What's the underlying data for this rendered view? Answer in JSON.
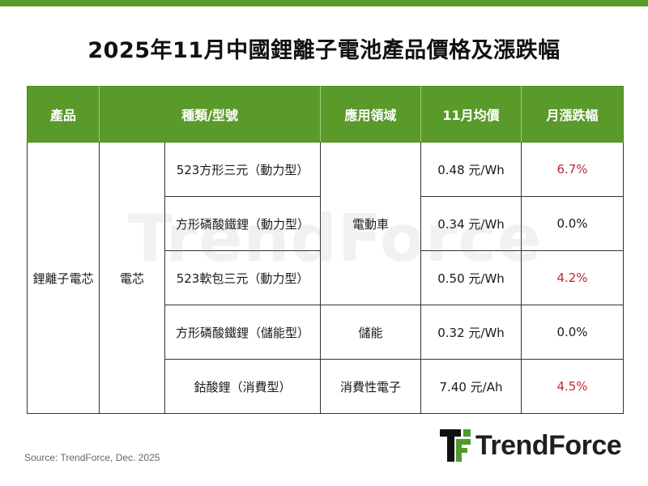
{
  "title": "2025年11月中國鋰離子電池產品價格及漲跌幅",
  "watermark": "TrendForce",
  "colors": {
    "header_green": "#5a9a2a",
    "increase_red": "#c0282d",
    "neutral_text": "#1a1a1a"
  },
  "table": {
    "headers": [
      "產品",
      "種類/型號",
      "應用領域",
      "11月均價",
      "月漲跌幅"
    ],
    "product": "鋰離子電芯",
    "category": "電芯",
    "rows": [
      {
        "model": "523方形三元（動力型）",
        "avg_price": "0.48 元/Wh",
        "mom_change": "6.7%"
      },
      {
        "model": "方形磷酸鐵鋰（動力型）",
        "avg_price": "0.34 元/Wh",
        "mom_change": "0.0%"
      },
      {
        "model": "523軟包三元（動力型）",
        "avg_price": "0.50 元/Wh",
        "mom_change": "4.2%"
      },
      {
        "model": "方形磷酸鐵鋰（儲能型）",
        "avg_price": "0.32 元/Wh",
        "mom_change": "0.0%"
      },
      {
        "model": "鈷酸鋰（消費型）",
        "avg_price": "7.40 元/Ah",
        "mom_change": "4.5%"
      }
    ],
    "applications": [
      "電動車",
      "儲能",
      "消費性電子"
    ]
  },
  "source": "Source: TrendForce,  Dec. 2025",
  "logo": {
    "text": "TrendForce",
    "icon": "trendforce-logo-icon"
  }
}
